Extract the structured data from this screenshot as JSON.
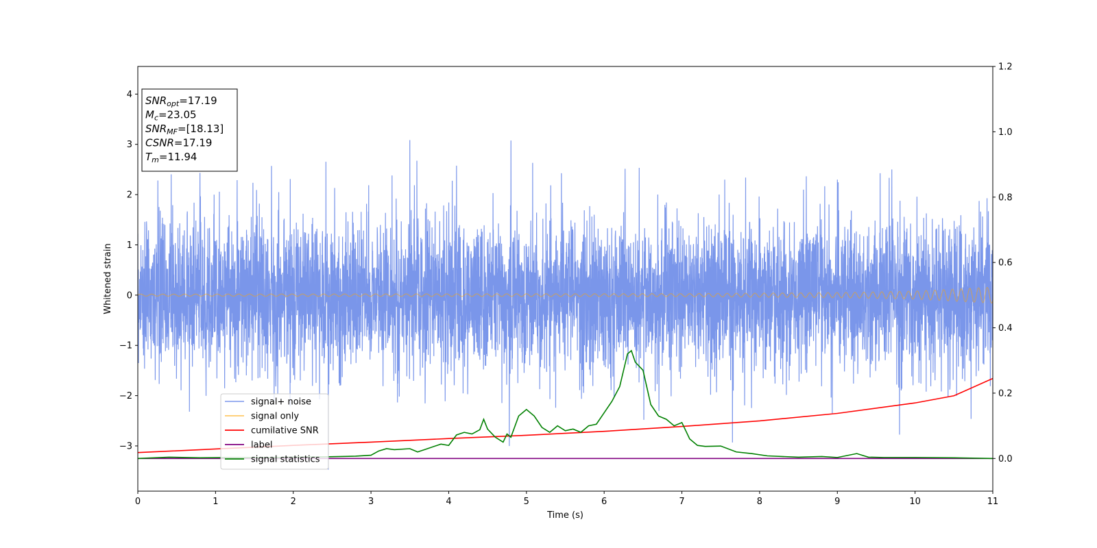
{
  "chart_data": {
    "type": "line",
    "xlabel": "Time (s)",
    "ylabel": "Whitened strain",
    "xlim": [
      0,
      11
    ],
    "ylim": [
      -3.9,
      4.55
    ],
    "y2lim": [
      -0.1,
      1.2
    ],
    "grid": false,
    "legend_placement": "lower-left",
    "x_ticks": [
      "0",
      "1",
      "2",
      "3",
      "4",
      "5",
      "6",
      "7",
      "8",
      "9",
      "10",
      "11"
    ],
    "y_ticks": [
      "−3",
      "−2",
      "−1",
      "0",
      "1",
      "2",
      "3",
      "4"
    ],
    "y2_ticks": [
      "0.0",
      "0.2",
      "0.4",
      "0.6",
      "0.8",
      "1.0",
      "1.2"
    ],
    "annotation": [
      {
        "sym": "SNR",
        "sub": "opt",
        "rest": "=17.19"
      },
      {
        "sym": "M",
        "sub": "c",
        "rest": "=23.05"
      },
      {
        "sym": "SNR",
        "sub": "MF",
        "rest": "=[18.13]"
      },
      {
        "sym": "CSNR",
        "sub": "",
        "rest": "=17.19"
      },
      {
        "sym": "T",
        "sub": "m",
        "rest": "=11.94"
      }
    ],
    "series": [
      {
        "name": "signal+ noise",
        "color": "#4169e1",
        "axis": "left",
        "envelope_sigma": 0.75,
        "spikes": [
          [
            0.43,
            2.4
          ],
          [
            0.8,
            2.45
          ],
          [
            1.05,
            2.05
          ],
          [
            1.72,
            2.55
          ],
          [
            2.42,
            2.65
          ],
          [
            2.45,
            -3.45
          ],
          [
            2.97,
            2.2
          ],
          [
            3.27,
            2.4
          ],
          [
            3.5,
            3.1
          ],
          [
            3.59,
            2.65
          ],
          [
            4.1,
            2.55
          ],
          [
            4.57,
            2.05
          ],
          [
            4.8,
            3.1
          ],
          [
            4.78,
            -3.0
          ],
          [
            5.08,
            2.65
          ],
          [
            5.45,
            2.45
          ],
          [
            6.27,
            2.5
          ],
          [
            6.45,
            2.55
          ],
          [
            6.51,
            -2.5
          ],
          [
            7.65,
            -2.9
          ],
          [
            8.6,
            2.4
          ],
          [
            9.0,
            2.25
          ],
          [
            9.55,
            2.4
          ],
          [
            9.7,
            2.45
          ],
          [
            9.8,
            -2.85
          ],
          [
            10.72,
            -2.55
          ]
        ]
      },
      {
        "name": "signal only",
        "color": "#ffa500",
        "axis": "left",
        "chirp_amplitude": [
          [
            0,
            0.02
          ],
          [
            7,
            0.03
          ],
          [
            9,
            0.05
          ],
          [
            10,
            0.08
          ],
          [
            10.5,
            0.12
          ],
          [
            11,
            0.16
          ]
        ]
      },
      {
        "name": "cumilative SNR",
        "color": "#ff0000",
        "axis": "right",
        "x": [
          0,
          1,
          2,
          3,
          4,
          5,
          6,
          7,
          8,
          9,
          10,
          10.5,
          11
        ],
        "y": [
          0.018,
          0.029,
          0.04,
          0.05,
          0.061,
          0.071,
          0.083,
          0.098,
          0.115,
          0.138,
          0.17,
          0.192,
          0.245
        ]
      },
      {
        "name": "label",
        "color": "#800080",
        "axis": "right",
        "x": [
          0,
          11
        ],
        "y": [
          0.0,
          0.0
        ]
      },
      {
        "name": "signal statistics",
        "color": "#008000",
        "axis": "right",
        "x": [
          0,
          0.4,
          0.8,
          1.2,
          1.6,
          2,
          2.4,
          2.8,
          3.0,
          3.1,
          3.2,
          3.3,
          3.5,
          3.6,
          3.7,
          3.9,
          4.0,
          4.1,
          4.2,
          4.3,
          4.4,
          4.45,
          4.5,
          4.6,
          4.7,
          4.75,
          4.8,
          4.9,
          5.0,
          5.1,
          5.2,
          5.3,
          5.4,
          5.5,
          5.6,
          5.7,
          5.8,
          5.9,
          6.0,
          6.1,
          6.2,
          6.3,
          6.35,
          6.4,
          6.5,
          6.6,
          6.7,
          6.8,
          6.9,
          7.0,
          7.1,
          7.2,
          7.3,
          7.5,
          7.7,
          7.9,
          8.1,
          8.5,
          8.8,
          9.0,
          9.25,
          9.4,
          9.6,
          10.0,
          10.5,
          11
        ],
        "y": [
          0.0,
          0.004,
          0.002,
          0.003,
          0.002,
          0.004,
          0.005,
          0.007,
          0.01,
          0.023,
          0.03,
          0.027,
          0.03,
          0.02,
          0.028,
          0.044,
          0.04,
          0.072,
          0.08,
          0.075,
          0.088,
          0.12,
          0.09,
          0.065,
          0.05,
          0.075,
          0.065,
          0.13,
          0.15,
          0.13,
          0.095,
          0.08,
          0.1,
          0.085,
          0.09,
          0.08,
          0.1,
          0.105,
          0.14,
          0.175,
          0.22,
          0.32,
          0.33,
          0.295,
          0.27,
          0.165,
          0.13,
          0.12,
          0.1,
          0.11,
          0.06,
          0.04,
          0.037,
          0.038,
          0.02,
          0.015,
          0.008,
          0.004,
          0.006,
          0.003,
          0.015,
          0.004,
          0.003,
          0.003,
          0.002,
          0.0
        ]
      }
    ]
  }
}
